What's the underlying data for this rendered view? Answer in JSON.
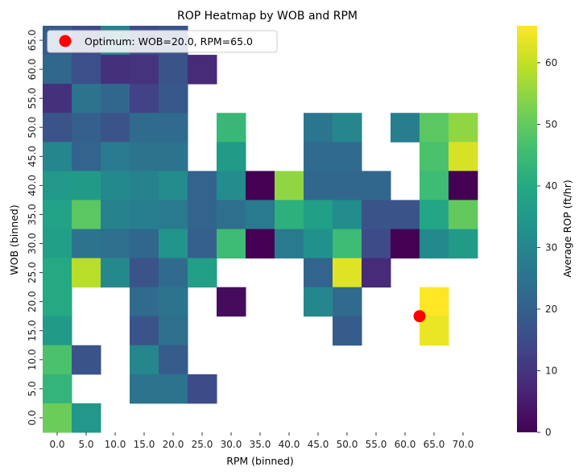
{
  "chart_data": {
    "type": "heatmap",
    "title": "ROP Heatmap by WOB and RPM",
    "xlabel": "RPM (binned)",
    "ylabel": "WOB (binned)",
    "x_categories": [
      "0.0",
      "5.0",
      "10.0",
      "15.0",
      "20.0",
      "25.0",
      "30.0",
      "35.0",
      "40.0",
      "45.0",
      "50.0",
      "55.0",
      "60.0",
      "65.0",
      "70.0"
    ],
    "y_categories": [
      "65.0",
      "60.0",
      "55.0",
      "50.0",
      "45.0",
      "40.0",
      "35.0",
      "30.0",
      "25.0",
      "20.0",
      "15.0",
      "10.0",
      "5.0",
      "0.0"
    ],
    "values": [
      [
        19,
        15,
        29,
        15,
        17,
        null,
        null,
        null,
        null,
        null,
        null,
        null,
        null,
        null,
        null
      ],
      [
        22,
        16,
        9,
        10,
        17,
        8,
        null,
        null,
        null,
        null,
        null,
        null,
        null,
        null,
        null
      ],
      [
        9,
        25,
        22,
        13,
        18,
        null,
        null,
        null,
        null,
        null,
        null,
        null,
        null,
        null,
        null
      ],
      [
        17,
        20,
        17,
        23,
        23,
        null,
        44,
        null,
        null,
        26,
        30,
        null,
        28,
        49,
        55
      ],
      [
        30,
        21,
        27,
        25,
        25,
        null,
        36,
        null,
        null,
        23,
        23,
        null,
        null,
        47,
        62
      ],
      [
        35,
        36,
        31,
        29,
        32,
        21,
        32,
        0,
        55,
        22,
        22,
        22,
        null,
        45,
        0
      ],
      [
        38,
        49,
        29,
        28,
        27,
        21,
        24,
        27,
        42,
        37,
        32,
        17,
        17,
        39,
        50
      ],
      [
        37,
        25,
        24,
        22,
        34,
        20,
        45,
        0,
        27,
        33,
        45,
        15,
        0,
        31,
        36
      ],
      [
        40,
        59,
        31,
        17,
        23,
        37,
        null,
        null,
        null,
        21,
        63,
        8,
        null,
        null,
        null
      ],
      [
        40,
        null,
        null,
        23,
        25,
        null,
        2,
        null,
        null,
        30,
        23,
        null,
        null,
        66,
        null
      ],
      [
        36,
        null,
        null,
        17,
        24,
        null,
        null,
        null,
        null,
        null,
        19,
        null,
        null,
        64,
        null
      ],
      [
        47,
        17,
        null,
        30,
        19,
        null,
        null,
        null,
        null,
        null,
        null,
        null,
        null,
        null,
        null
      ],
      [
        43,
        null,
        null,
        25,
        25,
        15,
        null,
        null,
        null,
        null,
        null,
        null,
        null,
        null,
        null
      ],
      [
        51,
        35,
        null,
        null,
        null,
        null,
        null,
        null,
        null,
        null,
        null,
        null,
        null,
        null,
        null
      ]
    ],
    "colorbar": {
      "label": "Average ROP (ft/hr)",
      "min": 0,
      "max": 66,
      "ticks": [
        "0",
        "10",
        "20",
        "30",
        "40",
        "50",
        "60"
      ],
      "colormap": "viridis"
    },
    "marker": {
      "label": "Optimum: WOB=20.0, RPM=65.0",
      "rpm": 65.0,
      "wob": 20.0,
      "color": "#ff0000"
    },
    "legend_position": "top-left",
    "grid": false
  }
}
